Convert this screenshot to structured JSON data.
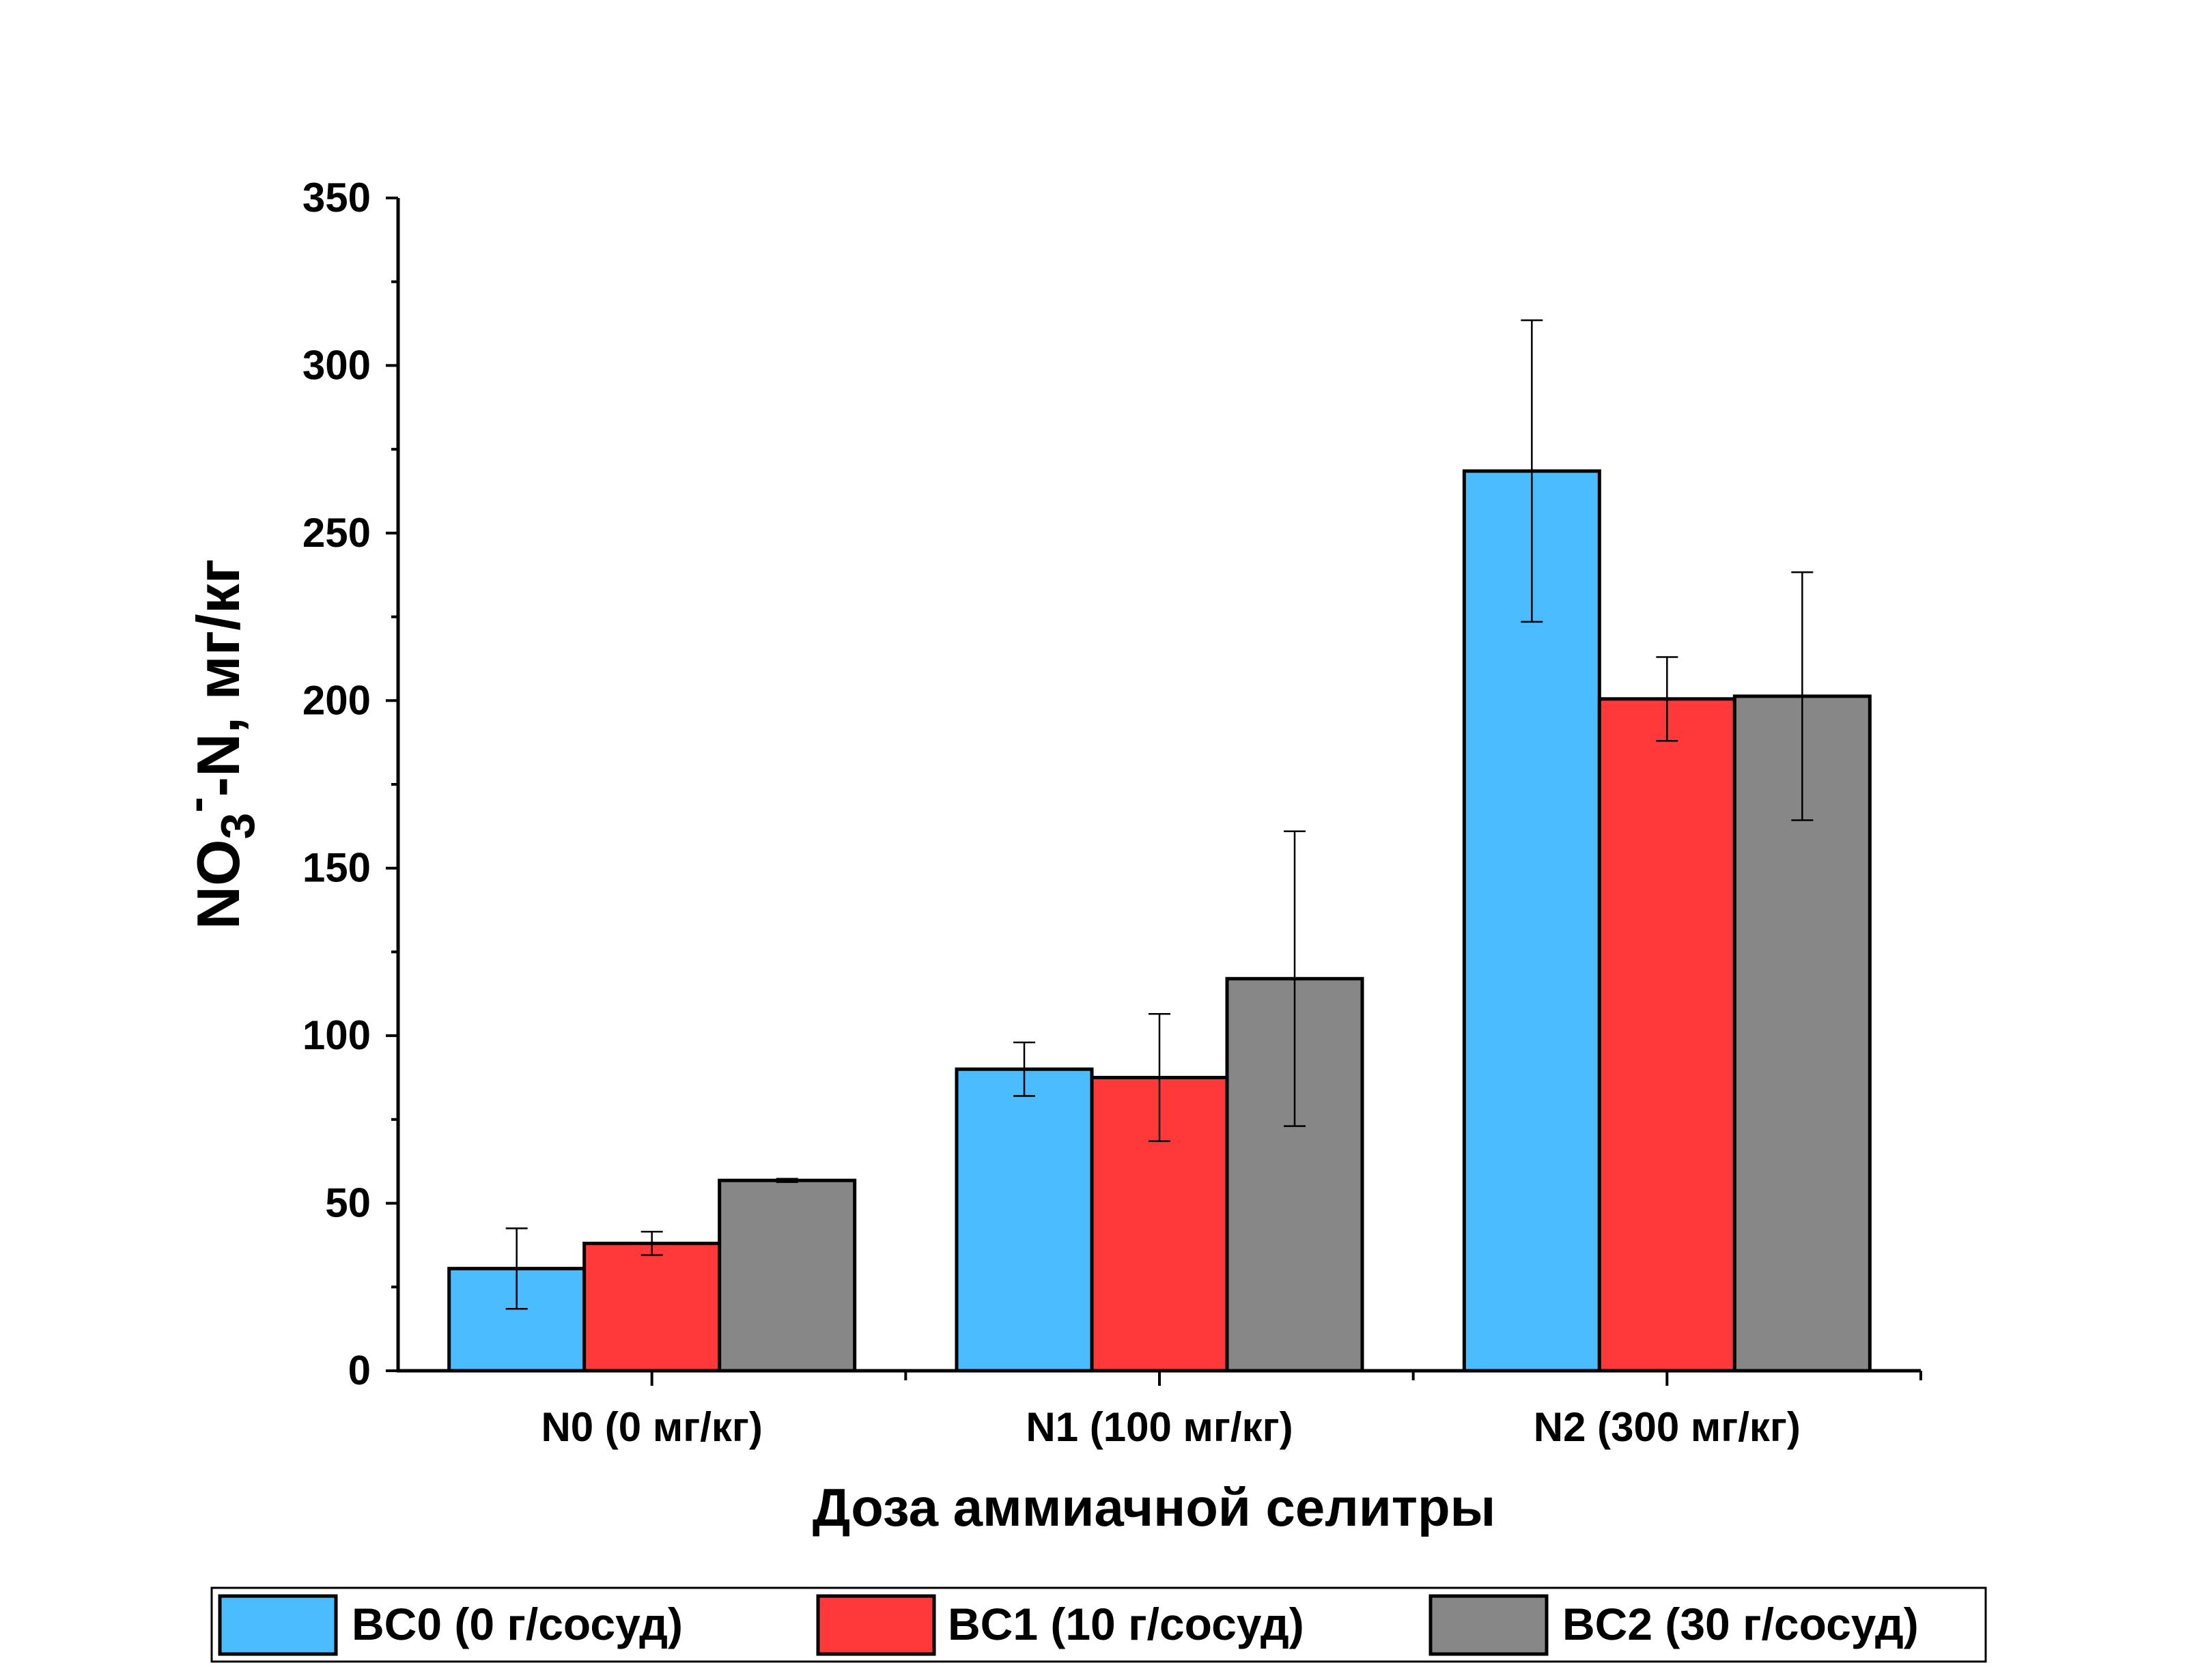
{
  "chart_data": {
    "type": "bar",
    "title": "",
    "xlabel": "Доза аммиачной селитры",
    "ylabel": {
      "main": "NO",
      "sub": "3",
      "sup": "-",
      "rest": "-N, мг/кг"
    },
    "ylim": [
      0,
      350
    ],
    "yticks": [
      "0",
      "50",
      "100",
      "150",
      "200",
      "250",
      "300",
      "350"
    ],
    "categories": [
      "N0 (0 мг/кг)",
      "N1 (100 мг/кг)",
      "N2 (300 мг/кг)"
    ],
    "series": [
      {
        "name": "BC0 (0 г/сосуд)",
        "color": "#4BBCFF",
        "values": [
          30.5,
          90,
          268.5
        ],
        "errors": [
          12,
          8,
          45
        ]
      },
      {
        "name": "BC1 (10 г/сосуд)",
        "color": "#FF3939",
        "values": [
          38,
          87.5,
          200.5
        ],
        "errors": [
          3.5,
          19,
          12.5
        ]
      },
      {
        "name": "BC2 (30 г/сосуд)",
        "color": "#878787",
        "values": [
          56.8,
          117,
          201.3
        ],
        "errors": [
          0.5,
          44,
          37
        ]
      }
    ],
    "grid": false,
    "legend_position": "bottom"
  }
}
